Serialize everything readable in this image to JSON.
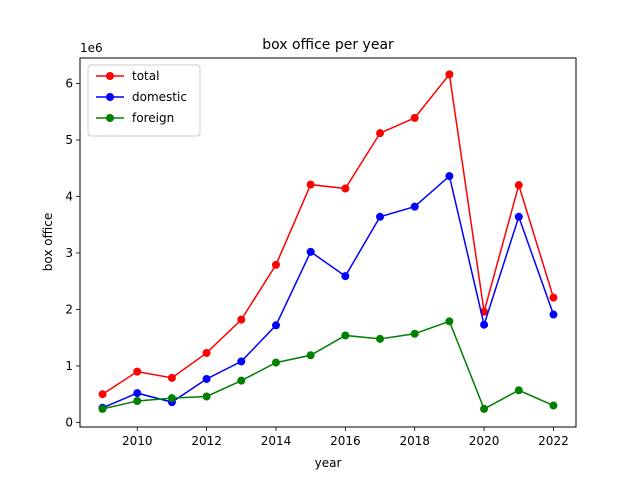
{
  "chart_data": {
    "type": "line",
    "title": "box office per year",
    "xlabel": "year",
    "ylabel": "box office",
    "y_offset_label": "1e6",
    "x": [
      2009,
      2010,
      2011,
      2012,
      2013,
      2014,
      2015,
      2016,
      2017,
      2018,
      2019,
      2020,
      2021,
      2022
    ],
    "xlim": [
      2008.35,
      2022.65
    ],
    "ylim": [
      -0.08,
      6.45
    ],
    "xticks": [
      2010,
      2012,
      2014,
      2016,
      2018,
      2020,
      2022
    ],
    "xtick_labels": [
      "2010",
      "2012",
      "2014",
      "2016",
      "2018",
      "2020",
      "2022"
    ],
    "yticks": [
      0,
      1,
      2,
      3,
      4,
      5,
      6
    ],
    "ytick_labels": [
      "0",
      "1",
      "2",
      "3",
      "4",
      "5",
      "6"
    ],
    "y_unit_multiplier": 1000000,
    "legend_position": "upper-left",
    "grid": false,
    "series": [
      {
        "name": "total",
        "color": "#ff0000",
        "values": [
          0.5,
          0.9,
          0.79,
          1.23,
          1.82,
          2.79,
          4.21,
          4.14,
          5.12,
          5.39,
          6.16,
          1.96,
          4.2,
          2.21
        ]
      },
      {
        "name": "domestic",
        "color": "#0000ff",
        "values": [
          0.26,
          0.52,
          0.36,
          0.77,
          1.08,
          1.72,
          3.02,
          2.59,
          3.64,
          3.82,
          4.36,
          1.73,
          3.64,
          1.91
        ]
      },
      {
        "name": "foreign",
        "color": "#008000",
        "values": [
          0.24,
          0.38,
          0.43,
          0.46,
          0.74,
          1.06,
          1.19,
          1.54,
          1.48,
          1.57,
          1.79,
          0.24,
          0.57,
          0.3
        ]
      }
    ]
  }
}
